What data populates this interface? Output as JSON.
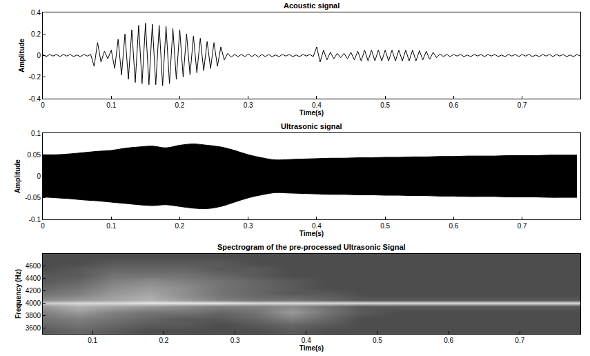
{
  "chart_data": [
    {
      "type": "line",
      "title": "Acoustic signal",
      "xlabel": "Time(s)",
      "ylabel": "Amplitude",
      "color": "#000000",
      "x": [
        0,
        0.005,
        0.01,
        0.015,
        0.02,
        0.025,
        0.03,
        0.035,
        0.04,
        0.045,
        0.05,
        0.055,
        0.06,
        0.065,
        0.07,
        0.075,
        0.08,
        0.085,
        0.09,
        0.095,
        0.1,
        0.105,
        0.11,
        0.115,
        0.12,
        0.125,
        0.13,
        0.135,
        0.14,
        0.145,
        0.15,
        0.155,
        0.16,
        0.165,
        0.17,
        0.175,
        0.18,
        0.185,
        0.19,
        0.195,
        0.2,
        0.205,
        0.21,
        0.215,
        0.22,
        0.225,
        0.23,
        0.235,
        0.24,
        0.245,
        0.25,
        0.255,
        0.26,
        0.265,
        0.27,
        0.275,
        0.28,
        0.285,
        0.29,
        0.295,
        0.3,
        0.305,
        0.31,
        0.315,
        0.32,
        0.325,
        0.33,
        0.335,
        0.34,
        0.345,
        0.35,
        0.355,
        0.36,
        0.365,
        0.37,
        0.375,
        0.38,
        0.385,
        0.39,
        0.395,
        0.4,
        0.405,
        0.41,
        0.415,
        0.42,
        0.425,
        0.43,
        0.435,
        0.44,
        0.445,
        0.45,
        0.455,
        0.46,
        0.465,
        0.47,
        0.475,
        0.48,
        0.485,
        0.49,
        0.495,
        0.5,
        0.505,
        0.51,
        0.515,
        0.52,
        0.525,
        0.53,
        0.535,
        0.54,
        0.545,
        0.55,
        0.555,
        0.56,
        0.565,
        0.57,
        0.575,
        0.58,
        0.585,
        0.59,
        0.595,
        0.6,
        0.605,
        0.61,
        0.615,
        0.62,
        0.625,
        0.63,
        0.635,
        0.64,
        0.645,
        0.65,
        0.655,
        0.66,
        0.665,
        0.67,
        0.675,
        0.68,
        0.685,
        0.69,
        0.695,
        0.7,
        0.705,
        0.71,
        0.715,
        0.72,
        0.725,
        0.73,
        0.735,
        0.74,
        0.745,
        0.75,
        0.755,
        0.76,
        0.765,
        0.77,
        0.775,
        0.78,
        0.785
      ],
      "values": [
        0.01,
        -0.01,
        0.01,
        -0.005,
        0.01,
        -0.01,
        0.01,
        -0.005,
        0.01,
        -0.01,
        0.005,
        -0.01,
        0.01,
        -0.005,
        0.01,
        -0.1,
        0.12,
        -0.06,
        0.04,
        -0.03,
        0.05,
        -0.12,
        0.15,
        -0.18,
        0.2,
        -0.22,
        0.24,
        -0.25,
        0.28,
        -0.26,
        0.3,
        -0.27,
        0.29,
        -0.27,
        0.28,
        -0.28,
        0.27,
        -0.26,
        0.25,
        -0.22,
        0.24,
        -0.2,
        0.2,
        -0.18,
        0.18,
        -0.16,
        0.16,
        -0.14,
        0.13,
        -0.12,
        0.12,
        -0.1,
        0.08,
        -0.04,
        0.02,
        -0.015,
        0.01,
        -0.01,
        0.01,
        -0.01,
        0.015,
        -0.01,
        0.01,
        -0.015,
        0.01,
        -0.01,
        0.01,
        -0.01,
        0.005,
        -0.01,
        0.01,
        -0.005,
        0.01,
        -0.01,
        0.005,
        -0.01,
        0.01,
        -0.005,
        0.01,
        -0.01,
        0.08,
        -0.06,
        0.05,
        -0.04,
        0.03,
        -0.03,
        0.02,
        -0.02,
        0.02,
        -0.03,
        0.03,
        -0.04,
        0.04,
        -0.05,
        0.05,
        -0.05,
        0.05,
        -0.05,
        0.05,
        -0.05,
        0.05,
        -0.05,
        0.05,
        -0.05,
        0.05,
        -0.05,
        0.05,
        -0.05,
        0.05,
        -0.05,
        0.045,
        -0.04,
        0.04,
        -0.035,
        0.03,
        -0.02,
        0.015,
        -0.01,
        0.01,
        -0.01,
        0.01,
        -0.005,
        0.01,
        -0.01,
        0.005,
        -0.01,
        0.01,
        -0.005,
        0.01,
        -0.01,
        0.01,
        -0.005,
        0.01,
        -0.01,
        0.005,
        -0.01,
        0.01,
        -0.005,
        0.01,
        -0.01,
        0.01,
        -0.005,
        0.01,
        -0.01,
        0.005,
        -0.01,
        0.01,
        -0.005,
        0.01,
        -0.01,
        0.01,
        -0.005,
        0.01,
        -0.01,
        0.005,
        -0.01,
        0.01,
        -0.005
      ],
      "xlim": [
        0,
        0.785
      ],
      "xticks": [
        0,
        0.1,
        0.2,
        0.3,
        0.4,
        0.5,
        0.6,
        0.7
      ],
      "ylim": [
        -0.4,
        0.4
      ],
      "yticks": [
        -0.4,
        -0.2,
        0,
        0.2,
        0.4
      ],
      "grid": false
    },
    {
      "type": "area",
      "title": "Ultrasonic signal",
      "xlabel": "Time(s)",
      "ylabel": "Amplitude",
      "color": "#000000",
      "x": [
        0,
        0.02,
        0.04,
        0.06,
        0.08,
        0.1,
        0.12,
        0.14,
        0.16,
        0.18,
        0.2,
        0.22,
        0.24,
        0.26,
        0.28,
        0.3,
        0.32,
        0.34,
        0.36,
        0.38,
        0.4,
        0.42,
        0.44,
        0.46,
        0.48,
        0.5,
        0.52,
        0.54,
        0.56,
        0.58,
        0.6,
        0.62,
        0.64,
        0.66,
        0.68,
        0.7,
        0.72,
        0.74,
        0.76,
        0.78
      ],
      "series": [
        {
          "values": [
            0.05,
            0.05,
            0.052,
            0.055,
            0.058,
            0.06,
            0.065,
            0.068,
            0.07,
            0.066,
            0.072,
            0.075,
            0.072,
            0.068,
            0.06,
            0.05,
            0.043,
            0.038,
            0.039,
            0.04,
            0.041,
            0.042,
            0.042,
            0.043,
            0.043,
            0.044,
            0.044,
            0.045,
            0.045,
            0.046,
            0.046,
            0.047,
            0.047,
            0.047,
            0.048,
            0.048,
            0.048,
            0.049,
            0.049,
            0.049
          ]
        },
        {
          "values": [
            -0.048,
            -0.05,
            -0.052,
            -0.055,
            -0.057,
            -0.06,
            -0.063,
            -0.066,
            -0.068,
            -0.066,
            -0.07,
            -0.074,
            -0.075,
            -0.07,
            -0.06,
            -0.05,
            -0.043,
            -0.038,
            -0.039,
            -0.04,
            -0.041,
            -0.042,
            -0.042,
            -0.043,
            -0.043,
            -0.044,
            -0.044,
            -0.045,
            -0.045,
            -0.046,
            -0.046,
            -0.047,
            -0.047,
            -0.047,
            -0.048,
            -0.048,
            -0.048,
            -0.049,
            -0.049,
            -0.049
          ]
        }
      ],
      "xlim": [
        0,
        0.785
      ],
      "xticks": [
        0,
        0.1,
        0.2,
        0.3,
        0.4,
        0.5,
        0.6,
        0.7
      ],
      "ylim": [
        -0.1,
        0.1
      ],
      "yticks": [
        -0.1,
        -0.05,
        0,
        0.05,
        0.1
      ],
      "grid": false
    },
    {
      "type": "heatmap",
      "title": "Spectrogram of the pre-processed Ultrasonic Signal",
      "xlabel": "Time(s)",
      "ylabel": "Frequency (Hz)",
      "x": [
        0.03,
        0.08,
        0.13,
        0.18,
        0.23,
        0.28,
        0.33,
        0.38,
        0.43,
        0.48,
        0.53,
        0.58,
        0.63,
        0.68,
        0.73,
        0.78
      ],
      "y": [
        3550,
        3650,
        3750,
        3850,
        3950,
        4000,
        4050,
        4150,
        4250,
        4350,
        4450,
        4550,
        4650,
        4750
      ],
      "z": [
        [
          0.35,
          0.4,
          0.35,
          0.3,
          0.3,
          0.3,
          0.3,
          0.35,
          0.3,
          0.3,
          0.3,
          0.3,
          0.3,
          0.3,
          0.3,
          0.3
        ],
        [
          0.4,
          0.45,
          0.4,
          0.35,
          0.35,
          0.3,
          0.35,
          0.4,
          0.35,
          0.3,
          0.3,
          0.3,
          0.3,
          0.3,
          0.3,
          0.3
        ],
        [
          0.45,
          0.5,
          0.45,
          0.4,
          0.35,
          0.35,
          0.4,
          0.5,
          0.4,
          0.3,
          0.3,
          0.3,
          0.3,
          0.3,
          0.3,
          0.3
        ],
        [
          0.5,
          0.6,
          0.5,
          0.45,
          0.45,
          0.4,
          0.45,
          0.6,
          0.45,
          0.35,
          0.3,
          0.3,
          0.3,
          0.3,
          0.3,
          0.3
        ],
        [
          0.6,
          0.7,
          0.65,
          0.6,
          0.55,
          0.5,
          0.5,
          0.55,
          0.45,
          0.35,
          0.35,
          0.35,
          0.35,
          0.35,
          0.35,
          0.35
        ],
        [
          0.8,
          0.85,
          0.85,
          0.9,
          0.9,
          0.9,
          0.85,
          0.85,
          0.85,
          0.85,
          0.85,
          0.85,
          0.85,
          0.85,
          0.85,
          0.85
        ],
        [
          0.55,
          0.6,
          0.65,
          0.7,
          0.6,
          0.5,
          0.45,
          0.45,
          0.4,
          0.35,
          0.35,
          0.35,
          0.35,
          0.35,
          0.35,
          0.35
        ],
        [
          0.45,
          0.5,
          0.6,
          0.65,
          0.55,
          0.45,
          0.4,
          0.35,
          0.35,
          0.3,
          0.3,
          0.3,
          0.3,
          0.3,
          0.3,
          0.3
        ],
        [
          0.4,
          0.45,
          0.55,
          0.6,
          0.55,
          0.45,
          0.4,
          0.35,
          0.3,
          0.3,
          0.3,
          0.3,
          0.3,
          0.3,
          0.3,
          0.3
        ],
        [
          0.35,
          0.4,
          0.5,
          0.55,
          0.5,
          0.45,
          0.4,
          0.35,
          0.3,
          0.3,
          0.3,
          0.3,
          0.3,
          0.3,
          0.3,
          0.3
        ],
        [
          0.35,
          0.35,
          0.45,
          0.45,
          0.45,
          0.4,
          0.35,
          0.3,
          0.3,
          0.3,
          0.3,
          0.3,
          0.3,
          0.3,
          0.3,
          0.3
        ],
        [
          0.3,
          0.35,
          0.4,
          0.4,
          0.4,
          0.35,
          0.35,
          0.3,
          0.3,
          0.3,
          0.3,
          0.3,
          0.3,
          0.3,
          0.3,
          0.3
        ],
        [
          0.3,
          0.3,
          0.35,
          0.35,
          0.35,
          0.35,
          0.3,
          0.3,
          0.3,
          0.3,
          0.3,
          0.3,
          0.3,
          0.3,
          0.3,
          0.3
        ],
        [
          0.3,
          0.3,
          0.3,
          0.3,
          0.3,
          0.3,
          0.3,
          0.3,
          0.3,
          0.3,
          0.3,
          0.3,
          0.3,
          0.3,
          0.3,
          0.3
        ]
      ],
      "zlim": [
        0,
        1
      ],
      "xlim": [
        0.03,
        0.785
      ],
      "xticks": [
        0.1,
        0.2,
        0.3,
        0.4,
        0.5,
        0.6,
        0.7
      ],
      "ylim": [
        3500,
        4800
      ],
      "yticks": [
        3600,
        3800,
        4000,
        4200,
        4400,
        4600
      ],
      "grid": false
    }
  ]
}
